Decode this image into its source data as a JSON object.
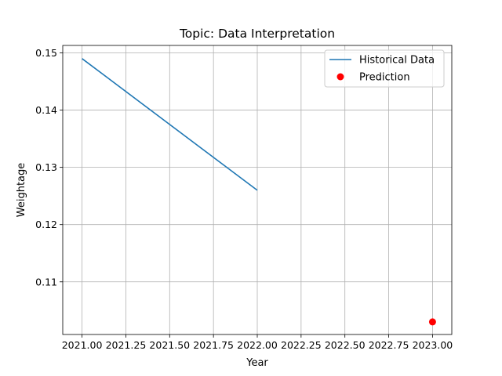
{
  "chart_data": {
    "type": "line",
    "title": "Topic: Data Interpretation",
    "xlabel": "Year",
    "ylabel": "Weightage",
    "xlim": [
      2020.89,
      2023.11
    ],
    "ylim": [
      0.1008,
      0.1513
    ],
    "grid": true,
    "legend_position": "top-right",
    "x_ticks": [
      2021.0,
      2021.25,
      2021.5,
      2021.75,
      2022.0,
      2022.25,
      2022.5,
      2022.75,
      2023.0
    ],
    "x_tick_labels": [
      "2021.00",
      "2021.25",
      "2021.50",
      "2021.75",
      "2022.00",
      "2022.25",
      "2022.50",
      "2022.75",
      "2023.00"
    ],
    "y_ticks": [
      0.11,
      0.12,
      0.13,
      0.14,
      0.15
    ],
    "y_tick_labels": [
      "0.11",
      "0.12",
      "0.13",
      "0.14",
      "0.15"
    ],
    "series": [
      {
        "name": "Historical Data",
        "kind": "line",
        "color": "#1f77b4",
        "x": [
          2021,
          2022
        ],
        "y": [
          0.149,
          0.126
        ]
      },
      {
        "name": "Prediction",
        "kind": "scatter",
        "color": "#ff0000",
        "x": [
          2023
        ],
        "y": [
          0.103
        ]
      }
    ]
  }
}
